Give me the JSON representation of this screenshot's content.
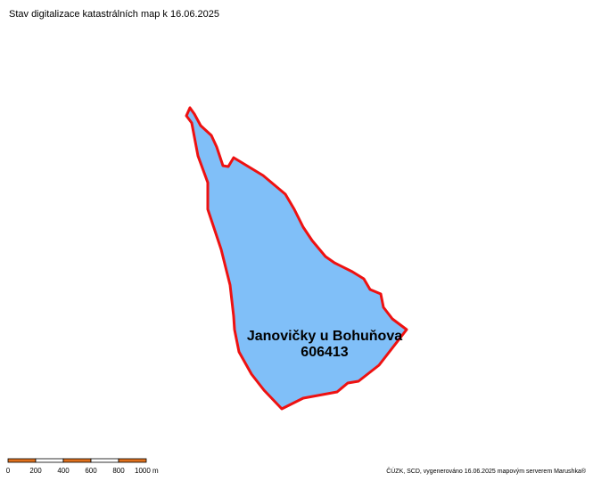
{
  "title": "Stav digitalizace katastrálních map k 16.06.2025",
  "area": {
    "name": "Janovičky u Bohuňova",
    "code": "606413"
  },
  "scale_bar": {
    "labels": [
      "0",
      "200",
      "400",
      "600",
      "800",
      "1000 m"
    ]
  },
  "footer": "ČÚZK, SCD, vygenerováno 16.06.2025 mapovým serverem Marushka®"
}
